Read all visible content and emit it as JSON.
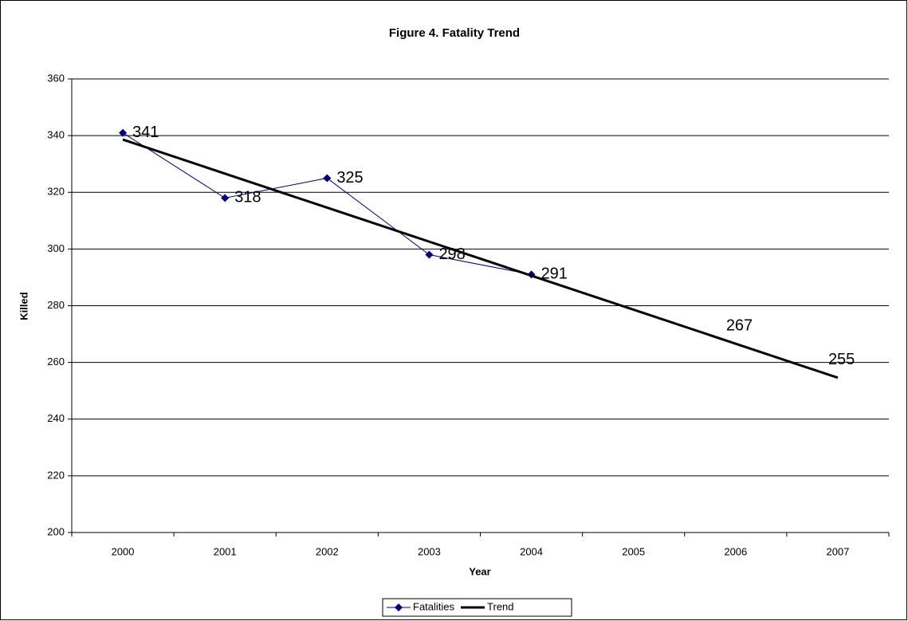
{
  "chart_data": {
    "type": "line",
    "title": "Figure 4. Fatality Trend",
    "x_label": "Year",
    "y_label": "Killed",
    "categories": [
      "2000",
      "2001",
      "2002",
      "2003",
      "2004",
      "2005",
      "2006",
      "2007"
    ],
    "series": [
      {
        "name": "Fatalities",
        "color": "#000080",
        "marker": "diamond",
        "values": [
          341,
          318,
          325,
          298,
          291,
          null,
          null,
          null
        ]
      },
      {
        "name": "Trend",
        "color": "#000000",
        "values": [
          338.6,
          326.6,
          314.6,
          302.6,
          290.6,
          278.6,
          266.6,
          254.6
        ],
        "value_labels": [
          null,
          null,
          null,
          null,
          null,
          null,
          "267",
          "255"
        ]
      }
    ],
    "ylim": [
      200,
      360
    ],
    "yticks": [
      200,
      220,
      240,
      260,
      280,
      300,
      320,
      340,
      360
    ],
    "grid": true,
    "legend": "bottom"
  }
}
